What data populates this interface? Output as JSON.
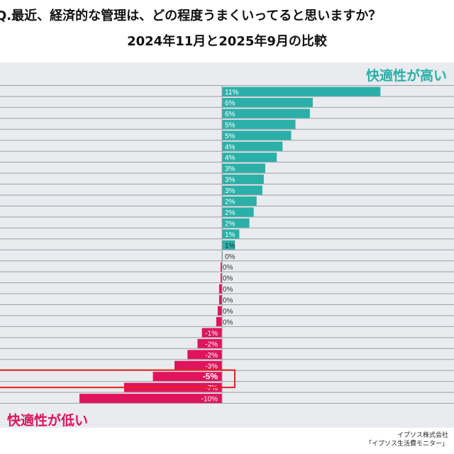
{
  "title": "Q.最近、経済的な管理は、どの程度うまくいってると思いますか？",
  "subtitle": "2024年11月と2025年9月の比較",
  "label_high": "快適性が高い",
  "label_low": "快適性が低い",
  "source_line1": "イプソス株式会社",
  "source_line2": "「イプソス生活費モニター」",
  "colors": {
    "positive": "#2ab0a8",
    "negative": "#e0145c",
    "highlight_box": "#e8201f",
    "background": "#e9ebef"
  },
  "chart_data": {
    "type": "bar",
    "orientation": "horizontal",
    "title": "Q.最近、経済的な管理は、どの程度うまくいってると思いますか？",
    "subtitle": "2024年11月と2025年9月の比較",
    "values": [
      11.0,
      6.3,
      6.1,
      5.1,
      4.8,
      4.2,
      3.8,
      3.0,
      2.9,
      2.8,
      2.4,
      2.2,
      1.9,
      1.2,
      0.9,
      0.05,
      -0.1,
      -0.1,
      -0.2,
      -0.2,
      -0.3,
      -0.4,
      -1.4,
      -1.7,
      -2.4,
      -3.3,
      -4.8,
      -6.8,
      -9.9
    ],
    "data_labels": [
      "11%",
      "6%",
      "6%",
      "5%",
      "5%",
      "4%",
      "4%",
      "3%",
      "3%",
      "3%",
      "2%",
      "2%",
      "2%",
      "1%",
      "1%",
      "0%",
      "0%",
      "0%",
      "0%",
      "0%",
      "0%",
      "0%",
      "-1%",
      "-2%",
      "-2%",
      "-3%",
      "-5%",
      "-7%",
      "-10%"
    ],
    "highlighted_index": 26,
    "xlim": [
      -11,
      16
    ],
    "grid": true
  }
}
